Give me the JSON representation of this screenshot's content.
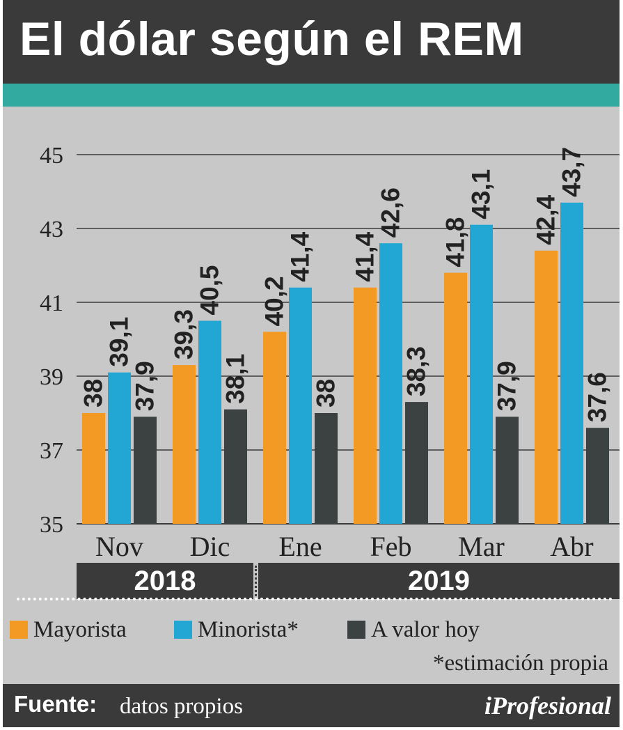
{
  "title": "El dólar según el REM",
  "chart_data": {
    "type": "bar",
    "categories": [
      "Nov",
      "Dic",
      "Ene",
      "Feb",
      "Mar",
      "Abr"
    ],
    "series": [
      {
        "name": "Mayorista",
        "color": "#f39a25",
        "values": [
          38,
          39.3,
          40.2,
          41.4,
          41.8,
          42.4
        ],
        "labels": [
          "38",
          "39,3",
          "40,2",
          "41,4",
          "41,8",
          "42,4"
        ]
      },
      {
        "name": "Minorista*",
        "color": "#22a7d4",
        "values": [
          39.1,
          40.5,
          41.4,
          42.6,
          43.1,
          43.7
        ],
        "labels": [
          "39,1",
          "40,5",
          "41,4",
          "42,6",
          "43,1",
          "43,7"
        ]
      },
      {
        "name": "A valor hoy",
        "color": "#3c4142",
        "values": [
          37.9,
          38.1,
          38,
          38.3,
          37.9,
          37.6
        ],
        "labels": [
          "37,9",
          "38,1",
          "38",
          "38,3",
          "37,9",
          "37,6"
        ]
      }
    ],
    "yticks": [
      35,
      37,
      39,
      41,
      43,
      45
    ],
    "ylim": [
      35,
      45
    ],
    "grid": true,
    "legend": "bottom",
    "years": [
      "2018",
      "2019"
    ]
  },
  "legend": {
    "items": [
      "Mayorista",
      "Minorista*",
      "A valor hoy"
    ],
    "note": "*estimación propia"
  },
  "footer": {
    "source_label": "Fuente:",
    "source_text": "datos propios",
    "brand": "iProfesional"
  }
}
